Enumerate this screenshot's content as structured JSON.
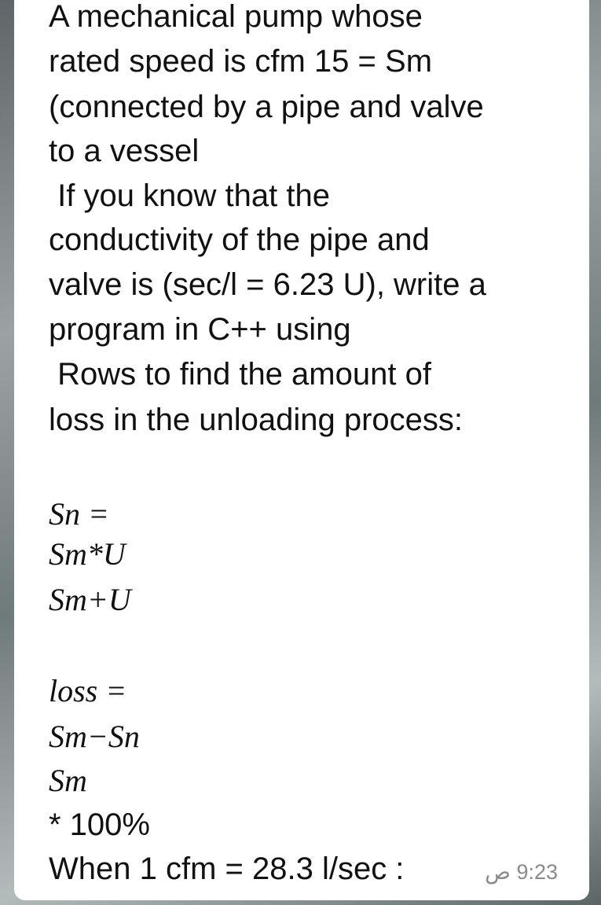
{
  "message": {
    "lines": [
      "A mechanical pump whose",
      "rated speed is cfm 15 = Sm",
      "(connected by a pipe and valve",
      "to a vessel",
      " If you know that the",
      "conductivity of the pipe and",
      "valve is (sec/l = 6.23 U), write a",
      "program in C++ using",
      " Rows to find the amount of",
      "loss in the unloading process:"
    ],
    "formula_sn": [
      "Sn =",
      "Sm*U",
      "Sm+U"
    ],
    "formula_loss": [
      "loss =",
      "Sm−Sn",
      "Sm"
    ],
    "percent": "* 100%",
    "conversion": "When 1 cfm = 28.3 l/sec :",
    "time": "9:23 ص"
  }
}
